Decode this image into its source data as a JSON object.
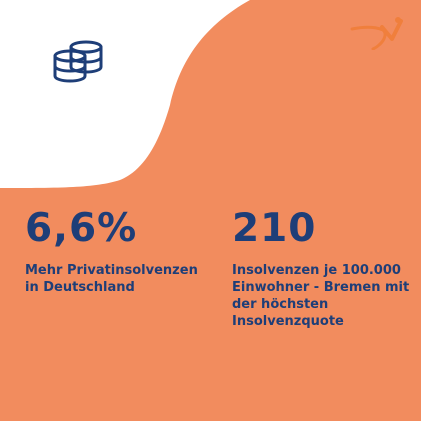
{
  "colors": {
    "background_top": "#FFFFFF",
    "background_orange": "#F28C5E",
    "text_navy": "#1E3E78",
    "logo_orange": "#F07F3C"
  },
  "icons": {
    "top_left": "coins-stack-icon",
    "top_right": "brand-logo-icon"
  },
  "stats": [
    {
      "value": "6,6%",
      "description": "Mehr Privatinsolvenzen in Deutschland"
    },
    {
      "value": "210",
      "description": "Insolvenzen je 100.000 Einwohner - Bremen mit der höchsten Insolvenzquote"
    }
  ]
}
